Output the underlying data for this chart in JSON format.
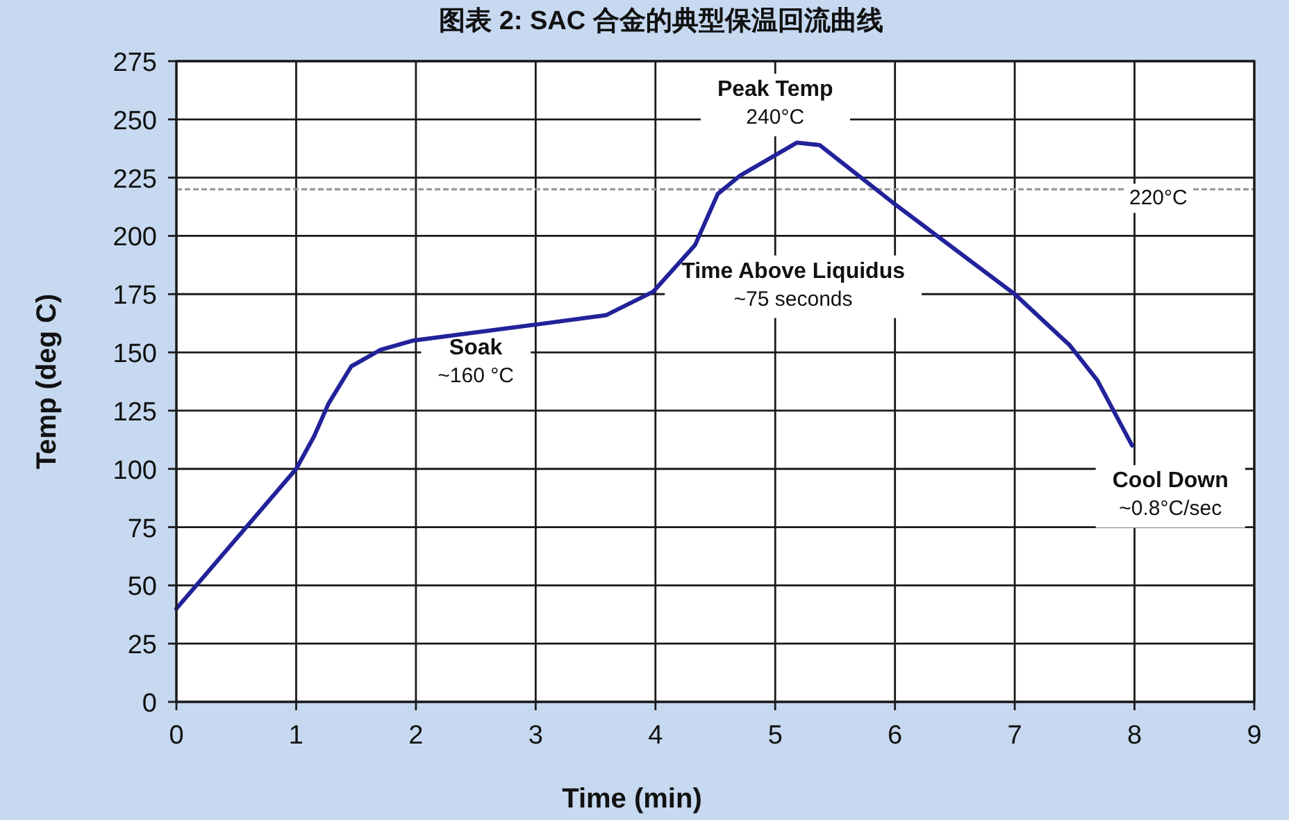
{
  "chart_data": {
    "type": "line",
    "title": "图表 2: SAC 合金的典型保温回流曲线",
    "xlabel": "Time (min)",
    "ylabel": "Temp (deg C)",
    "series": [
      {
        "color": "#22229a",
        "x": [
          0,
          1,
          1.15,
          1.27,
          1.46,
          1.7,
          1.97,
          3.01,
          3.59,
          3.98,
          4.33,
          4.52,
          4.71,
          5.18,
          5.37,
          5.99,
          7.0,
          7.46,
          7.69,
          7.98
        ],
        "values": [
          40,
          100,
          114,
          128,
          144,
          151,
          155,
          162,
          166,
          176,
          196,
          218,
          226,
          240,
          239,
          214,
          175,
          153,
          138,
          110
        ]
      }
    ],
    "xlim": [
      0,
      9
    ],
    "xticks": [
      0,
      1,
      2,
      3,
      4,
      5,
      6,
      7,
      8,
      9
    ],
    "ylim": [
      0,
      275
    ],
    "yticks": [
      0,
      25,
      50,
      75,
      100,
      125,
      150,
      175,
      200,
      225,
      250,
      275
    ],
    "grid": true,
    "marker": "none",
    "line_style": "solid",
    "ref_lines": [
      {
        "axis": "y",
        "value": 220,
        "label": "220°C",
        "color": "#999999",
        "line_style": "dashed"
      }
    ],
    "annotations": [
      "Soak\n~160 °C",
      "Peak Temp\n240°C",
      "Time Above Liquidus\n~75 seconds",
      "Cool Down\n~0.8°C/sec"
    ]
  }
}
